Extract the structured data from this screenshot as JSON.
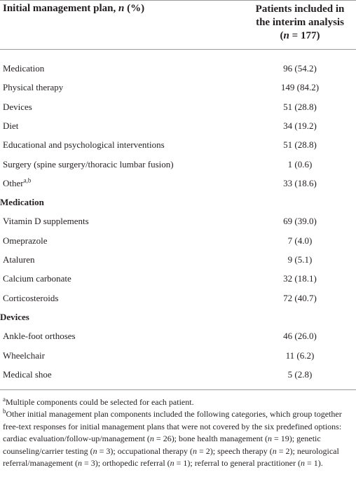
{
  "header": {
    "col1": [
      "Initial management plan, ",
      "n",
      " (%)"
    ],
    "col2": [
      "Patients included in the interim analysis",
      "(",
      "n",
      " = 177)"
    ]
  },
  "groups": [
    {
      "rows": [
        {
          "label": "Medication",
          "value": "96 (54.2)"
        },
        {
          "label": "Physical therapy",
          "value": "149 (84.2)"
        },
        {
          "label": "Devices",
          "value": "51 (28.8)"
        },
        {
          "label": "Diet",
          "value": "34 (19.2)"
        },
        {
          "label": "Educational and psychological interventions",
          "value": "51 (28.8)"
        },
        {
          "label": "Surgery (spine surgery/thoracic lumbar fusion)",
          "value": "1 (0.6)"
        },
        {
          "label": "Other",
          "sup": "a,b",
          "value": "33 (18.6)"
        }
      ]
    },
    {
      "heading": "Medication",
      "rows": [
        {
          "label": "Vitamin D supplements",
          "value": "69 (39.0)"
        },
        {
          "label": "Omeprazole",
          "value": "7 (4.0)"
        },
        {
          "label": "Ataluren",
          "value": "9 (5.1)"
        },
        {
          "label": "Calcium carbonate",
          "value": "32 (18.1)"
        },
        {
          "label": "Corticosteroids",
          "value": "72 (40.7)"
        }
      ]
    },
    {
      "heading": "Devices",
      "rows": [
        {
          "label": "Ankle-foot orthoses",
          "value": "46 (26.0)"
        },
        {
          "label": "Wheelchair",
          "value": "11 (6.2)"
        },
        {
          "label": "Medical shoe",
          "value": "5 (2.8)"
        }
      ]
    }
  ],
  "footnotes": [
    {
      "mark": "a",
      "text": [
        "Multiple components could be selected for each patient."
      ]
    },
    {
      "mark": "b",
      "text": [
        "Other initial management plan components included the following categories, which group together free-text responses for initial management plans that were not covered by the six predefined options: cardiac evaluation/follow-up/management (",
        "n",
        " = 26); bone health management (",
        "n",
        " = 19); genetic counseling/carrier testing (",
        "n",
        " = 3); occupational therapy (",
        "n",
        " = 2); speech therapy (",
        "n",
        " = 2); neurological referral/management (",
        "n",
        " = 3); orthopedic referral (",
        "n",
        " = 1); referral to general practitioner (",
        "n",
        " = 1)."
      ]
    }
  ]
}
